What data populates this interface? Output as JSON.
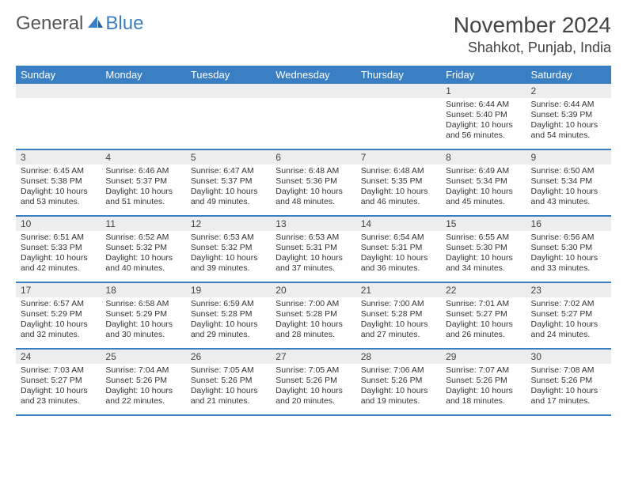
{
  "brand": {
    "general": "General",
    "blue": "Blue"
  },
  "title": {
    "month": "November 2024",
    "location": "Shahkot, Punjab, India"
  },
  "colors": {
    "header_bg": "#3a7fc4",
    "header_text": "#ffffff",
    "daynum_bg": "#ededed",
    "row_border": "#3a7fc4",
    "text": "#333333",
    "logo_gray": "#555555",
    "logo_blue": "#3a7fc4",
    "background": "#ffffff"
  },
  "typography": {
    "month_fontsize": 28,
    "location_fontsize": 18,
    "weekday_fontsize": 13,
    "daynum_fontsize": 12,
    "body_fontsize": 10.5
  },
  "weekdays": [
    "Sunday",
    "Monday",
    "Tuesday",
    "Wednesday",
    "Thursday",
    "Friday",
    "Saturday"
  ],
  "weeks": [
    [
      {
        "n": "",
        "sr": "",
        "ss": "",
        "dl": ""
      },
      {
        "n": "",
        "sr": "",
        "ss": "",
        "dl": ""
      },
      {
        "n": "",
        "sr": "",
        "ss": "",
        "dl": ""
      },
      {
        "n": "",
        "sr": "",
        "ss": "",
        "dl": ""
      },
      {
        "n": "",
        "sr": "",
        "ss": "",
        "dl": ""
      },
      {
        "n": "1",
        "sr": "Sunrise: 6:44 AM",
        "ss": "Sunset: 5:40 PM",
        "dl": "Daylight: 10 hours and 56 minutes."
      },
      {
        "n": "2",
        "sr": "Sunrise: 6:44 AM",
        "ss": "Sunset: 5:39 PM",
        "dl": "Daylight: 10 hours and 54 minutes."
      }
    ],
    [
      {
        "n": "3",
        "sr": "Sunrise: 6:45 AM",
        "ss": "Sunset: 5:38 PM",
        "dl": "Daylight: 10 hours and 53 minutes."
      },
      {
        "n": "4",
        "sr": "Sunrise: 6:46 AM",
        "ss": "Sunset: 5:37 PM",
        "dl": "Daylight: 10 hours and 51 minutes."
      },
      {
        "n": "5",
        "sr": "Sunrise: 6:47 AM",
        "ss": "Sunset: 5:37 PM",
        "dl": "Daylight: 10 hours and 49 minutes."
      },
      {
        "n": "6",
        "sr": "Sunrise: 6:48 AM",
        "ss": "Sunset: 5:36 PM",
        "dl": "Daylight: 10 hours and 48 minutes."
      },
      {
        "n": "7",
        "sr": "Sunrise: 6:48 AM",
        "ss": "Sunset: 5:35 PM",
        "dl": "Daylight: 10 hours and 46 minutes."
      },
      {
        "n": "8",
        "sr": "Sunrise: 6:49 AM",
        "ss": "Sunset: 5:34 PM",
        "dl": "Daylight: 10 hours and 45 minutes."
      },
      {
        "n": "9",
        "sr": "Sunrise: 6:50 AM",
        "ss": "Sunset: 5:34 PM",
        "dl": "Daylight: 10 hours and 43 minutes."
      }
    ],
    [
      {
        "n": "10",
        "sr": "Sunrise: 6:51 AM",
        "ss": "Sunset: 5:33 PM",
        "dl": "Daylight: 10 hours and 42 minutes."
      },
      {
        "n": "11",
        "sr": "Sunrise: 6:52 AM",
        "ss": "Sunset: 5:32 PM",
        "dl": "Daylight: 10 hours and 40 minutes."
      },
      {
        "n": "12",
        "sr": "Sunrise: 6:53 AM",
        "ss": "Sunset: 5:32 PM",
        "dl": "Daylight: 10 hours and 39 minutes."
      },
      {
        "n": "13",
        "sr": "Sunrise: 6:53 AM",
        "ss": "Sunset: 5:31 PM",
        "dl": "Daylight: 10 hours and 37 minutes."
      },
      {
        "n": "14",
        "sr": "Sunrise: 6:54 AM",
        "ss": "Sunset: 5:31 PM",
        "dl": "Daylight: 10 hours and 36 minutes."
      },
      {
        "n": "15",
        "sr": "Sunrise: 6:55 AM",
        "ss": "Sunset: 5:30 PM",
        "dl": "Daylight: 10 hours and 34 minutes."
      },
      {
        "n": "16",
        "sr": "Sunrise: 6:56 AM",
        "ss": "Sunset: 5:30 PM",
        "dl": "Daylight: 10 hours and 33 minutes."
      }
    ],
    [
      {
        "n": "17",
        "sr": "Sunrise: 6:57 AM",
        "ss": "Sunset: 5:29 PM",
        "dl": "Daylight: 10 hours and 32 minutes."
      },
      {
        "n": "18",
        "sr": "Sunrise: 6:58 AM",
        "ss": "Sunset: 5:29 PM",
        "dl": "Daylight: 10 hours and 30 minutes."
      },
      {
        "n": "19",
        "sr": "Sunrise: 6:59 AM",
        "ss": "Sunset: 5:28 PM",
        "dl": "Daylight: 10 hours and 29 minutes."
      },
      {
        "n": "20",
        "sr": "Sunrise: 7:00 AM",
        "ss": "Sunset: 5:28 PM",
        "dl": "Daylight: 10 hours and 28 minutes."
      },
      {
        "n": "21",
        "sr": "Sunrise: 7:00 AM",
        "ss": "Sunset: 5:28 PM",
        "dl": "Daylight: 10 hours and 27 minutes."
      },
      {
        "n": "22",
        "sr": "Sunrise: 7:01 AM",
        "ss": "Sunset: 5:27 PM",
        "dl": "Daylight: 10 hours and 26 minutes."
      },
      {
        "n": "23",
        "sr": "Sunrise: 7:02 AM",
        "ss": "Sunset: 5:27 PM",
        "dl": "Daylight: 10 hours and 24 minutes."
      }
    ],
    [
      {
        "n": "24",
        "sr": "Sunrise: 7:03 AM",
        "ss": "Sunset: 5:27 PM",
        "dl": "Daylight: 10 hours and 23 minutes."
      },
      {
        "n": "25",
        "sr": "Sunrise: 7:04 AM",
        "ss": "Sunset: 5:26 PM",
        "dl": "Daylight: 10 hours and 22 minutes."
      },
      {
        "n": "26",
        "sr": "Sunrise: 7:05 AM",
        "ss": "Sunset: 5:26 PM",
        "dl": "Daylight: 10 hours and 21 minutes."
      },
      {
        "n": "27",
        "sr": "Sunrise: 7:05 AM",
        "ss": "Sunset: 5:26 PM",
        "dl": "Daylight: 10 hours and 20 minutes."
      },
      {
        "n": "28",
        "sr": "Sunrise: 7:06 AM",
        "ss": "Sunset: 5:26 PM",
        "dl": "Daylight: 10 hours and 19 minutes."
      },
      {
        "n": "29",
        "sr": "Sunrise: 7:07 AM",
        "ss": "Sunset: 5:26 PM",
        "dl": "Daylight: 10 hours and 18 minutes."
      },
      {
        "n": "30",
        "sr": "Sunrise: 7:08 AM",
        "ss": "Sunset: 5:26 PM",
        "dl": "Daylight: 10 hours and 17 minutes."
      }
    ]
  ]
}
